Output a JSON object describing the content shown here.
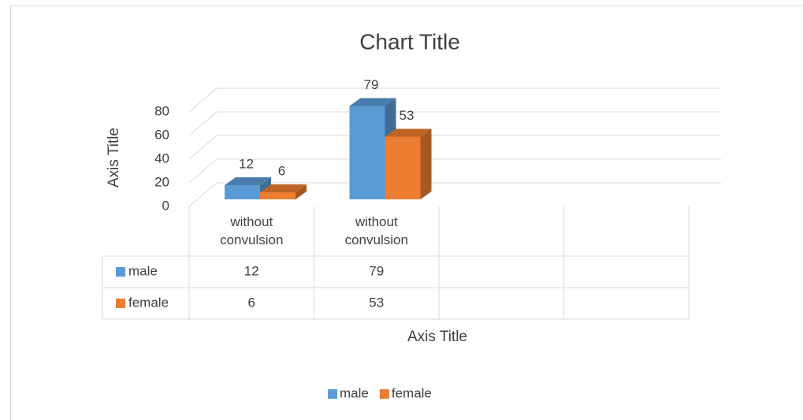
{
  "chart_data": {
    "type": "bar3d",
    "title": "Chart Title",
    "x_axis_title": "Axis Title",
    "y_axis_title": "Axis Title",
    "categories": [
      "without convulsion",
      "without convulsion",
      null,
      null
    ],
    "series": [
      {
        "name": "male",
        "color": "#5b9bd5",
        "values": [
          12,
          79,
          null,
          null
        ]
      },
      {
        "name": "female",
        "color": "#ed7d31",
        "values": [
          6,
          53,
          null,
          null
        ]
      }
    ],
    "ylim": [
      0,
      80
    ],
    "yticks": [
      0,
      20,
      40,
      60,
      80
    ],
    "grid": true,
    "data_table": true,
    "legend": "bottom"
  }
}
